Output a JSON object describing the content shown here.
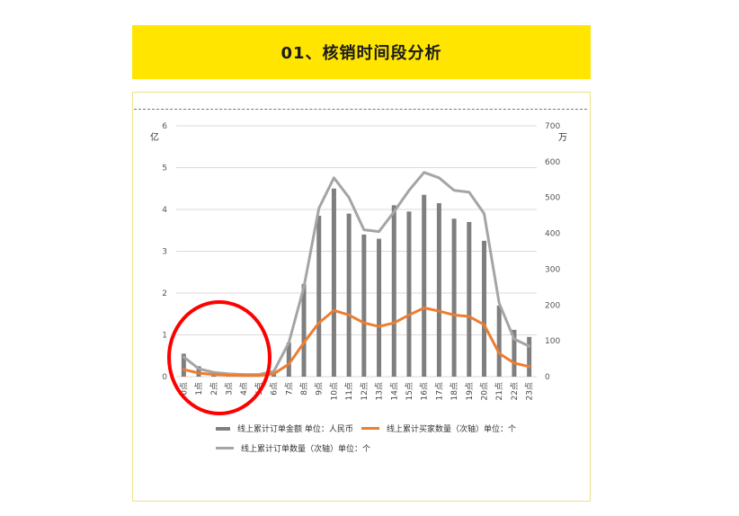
{
  "header": {
    "title": "01、核销时间段分析"
  },
  "chart_data": {
    "type": "bar+line",
    "categories": [
      "0点",
      "1点",
      "2点",
      "3点",
      "4点",
      "5点",
      "6点",
      "7点",
      "8点",
      "9点",
      "10点",
      "11点",
      "12点",
      "13点",
      "14点",
      "15点",
      "16点",
      "17点",
      "18点",
      "19点",
      "20点",
      "21点",
      "22点",
      "23点"
    ],
    "series": [
      {
        "name": "线上累计订单金额 单位：人民币",
        "type": "bar",
        "axis": "left",
        "color": "#7F7F7F",
        "values": [
          0.55,
          0.25,
          0.1,
          0.06,
          0.05,
          0.05,
          0.12,
          0.82,
          2.22,
          3.85,
          4.5,
          3.9,
          3.4,
          3.3,
          4.1,
          3.95,
          4.35,
          4.15,
          3.78,
          3.7,
          3.25,
          1.7,
          1.12,
          0.95
        ]
      },
      {
        "name": "线上累计买家数量（次轴）单位：个",
        "type": "line",
        "axis": "right",
        "color": "#ED7D31",
        "values": [
          20,
          10,
          6,
          4,
          3,
          3,
          8,
          35,
          95,
          150,
          185,
          172,
          150,
          140,
          150,
          172,
          192,
          183,
          172,
          168,
          145,
          65,
          38,
          28
        ]
      },
      {
        "name": "线上累计订单数量（次轴）单位：个",
        "type": "line",
        "axis": "right",
        "color": "#A5A5A5",
        "values": [
          55,
          22,
          12,
          8,
          6,
          6,
          15,
          95,
          250,
          470,
          555,
          500,
          410,
          405,
          460,
          520,
          570,
          555,
          520,
          515,
          455,
          205,
          105,
          85
        ]
      }
    ],
    "y_left": {
      "unit": "亿",
      "ticks": [
        "0",
        "1",
        "2",
        "3",
        "4",
        "5",
        "6"
      ],
      "ylim": [
        0,
        6
      ]
    },
    "y_right": {
      "unit": "万",
      "ticks": [
        "0",
        "100",
        "200",
        "300",
        "400",
        "500",
        "600",
        "700"
      ],
      "ylim": [
        0,
        700
      ]
    },
    "legend_position": "bottom",
    "grid": true,
    "annotation": "red circle highlighting 0点–5点"
  },
  "colors": {
    "banner": "#FFE500",
    "annotation": "#FF0000"
  }
}
